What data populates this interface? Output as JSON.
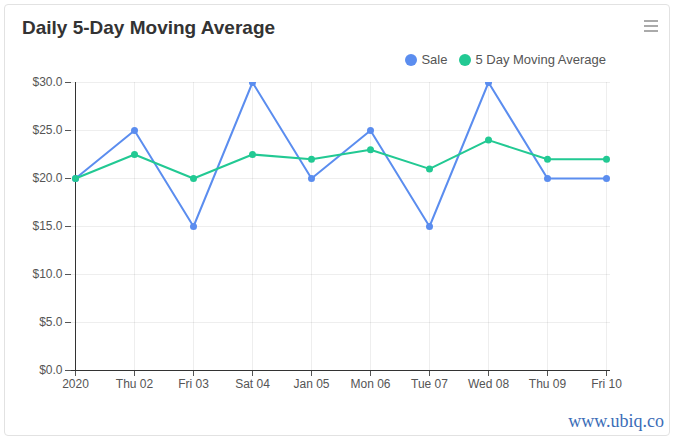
{
  "chart_data": {
    "type": "line",
    "title": "Daily 5-Day Moving Average",
    "annotation": "www.ubiq.co",
    "categories": [
      "2020",
      "Thu 02",
      "Fri 03",
      "Sat 04",
      "Jan 05",
      "Mon 06",
      "Tue 07",
      "Wed 08",
      "Thu 09",
      "Fri 10"
    ],
    "series": [
      {
        "name": "Sale",
        "color": "#5b8def",
        "marker": "circle",
        "values": [
          20,
          25,
          15,
          30,
          20,
          25,
          15,
          30,
          20,
          20
        ]
      },
      {
        "name": "5 Day Moving Average",
        "color": "#22c993",
        "marker": "circle",
        "values": [
          20,
          22.5,
          20,
          22.5,
          22,
          23,
          21,
          24,
          22,
          22
        ]
      }
    ],
    "ylim": [
      0,
      30
    ],
    "yticks": [
      {
        "value": 0,
        "label": "$0.0"
      },
      {
        "value": 5,
        "label": "$5.0"
      },
      {
        "value": 10,
        "label": "$10.0"
      },
      {
        "value": 15,
        "label": "$15.0"
      },
      {
        "value": 20,
        "label": "$20.0"
      },
      {
        "value": 25,
        "label": "$25.0"
      },
      {
        "value": 30,
        "label": "$30.0"
      }
    ],
    "grid": true,
    "legend": "top-right"
  }
}
